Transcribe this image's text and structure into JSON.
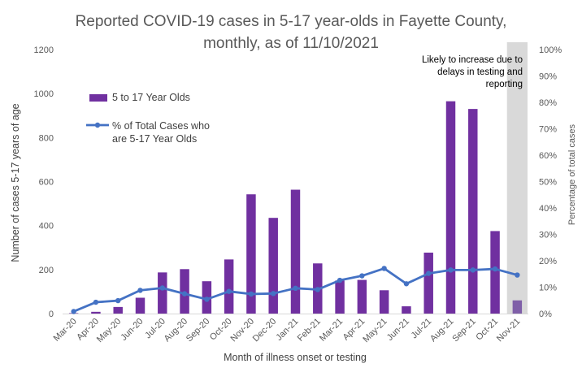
{
  "chart_data": {
    "type": "bar",
    "title_lines": [
      "Reported COVID-19 cases in 5-17 year-olds in Fayette County,",
      "monthly, as of 11/10/2021"
    ],
    "xlabel": "Month of illness onset or testing",
    "ylabel": "Number of cases 5-17 years of age",
    "y2label": "Percentage of total cases",
    "ylim": [
      0,
      1200
    ],
    "y_ticks": [
      "0",
      "200",
      "400",
      "600",
      "800",
      "1000",
      "1200"
    ],
    "y2lim": [
      0,
      100
    ],
    "y2_ticks": [
      "0%",
      "10%",
      "20%",
      "30%",
      "40%",
      "50%",
      "60%",
      "70%",
      "80%",
      "90%",
      "100%"
    ],
    "categories": [
      "Mar-20",
      "Apr-20",
      "May-20",
      "Jun-20",
      "Jul-20",
      "Aug-20",
      "Sep-20",
      "Oct-20",
      "Nov-20",
      "Dec-20",
      "Jan-21",
      "Feb-21",
      "Mar-21",
      "Apr-21",
      "May-21",
      "Jun-21",
      "Jul-21",
      "Aug-21",
      "Sep-21",
      "Oct-21",
      "Nov-21"
    ],
    "series": [
      {
        "name": "5 to 17 Year Olds",
        "type": "bar",
        "axis": "left",
        "color": "#7030A0",
        "last_bar_color": "#7F5FA8",
        "values": [
          2,
          8,
          30,
          72,
          187,
          202,
          147,
          246,
          542,
          435,
          563,
          228,
          150,
          153,
          106,
          33,
          277,
          965,
          930,
          375,
          60
        ]
      },
      {
        "name": "% of Total Cases who are 5-17 Year Olds",
        "type": "line",
        "axis": "right",
        "color": "#4472C4",
        "values": [
          0.8,
          4.3,
          4.9,
          8.8,
          9.7,
          7.5,
          5.4,
          8.4,
          7.4,
          7.6,
          9.6,
          9.1,
          12.6,
          14.3,
          17.1,
          11.3,
          15.2,
          16.5,
          16.5,
          16.9,
          14.6
        ]
      }
    ],
    "shaded_region": {
      "category": "Nov-21",
      "color": "#D9D9D9"
    },
    "annotation_lines": [
      "Likely to increase due to",
      "delays in testing and",
      "reporting"
    ],
    "legend": {
      "placement": "upper-left",
      "bar_label": "5 to 17 Year Olds",
      "line_label_lines": [
        "% of Total Cases who",
        "are 5-17 Year Olds"
      ]
    },
    "grid": false
  }
}
